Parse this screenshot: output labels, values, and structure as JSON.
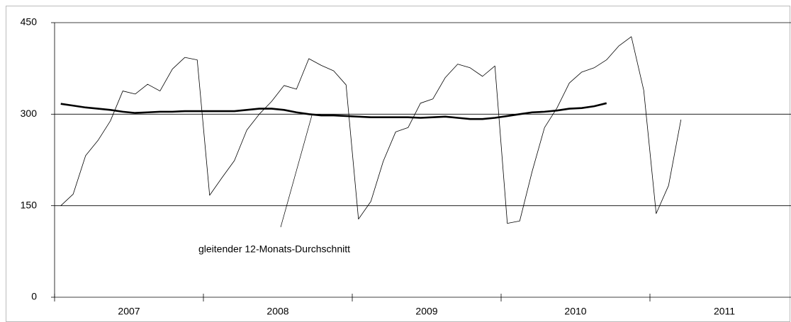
{
  "chart_data": {
    "type": "line",
    "categories": [
      null,
      null,
      null,
      null,
      null,
      null,
      null,
      null,
      null,
      null,
      null,
      null,
      null,
      null,
      null,
      null,
      null,
      null,
      null,
      null,
      null,
      null,
      null,
      null,
      null,
      null,
      null,
      null,
      null,
      null,
      null,
      null,
      null,
      null,
      null,
      null,
      null,
      null,
      null,
      null,
      null,
      null,
      null,
      null,
      null,
      null,
      null,
      null,
      null,
      null,
      null
    ],
    "year_labels": [
      "2007",
      "2008",
      "2009",
      "2010",
      "2011"
    ],
    "series": [
      {
        "name": null,
        "color": "#000000",
        "values": [
          150,
          169,
          232,
          257,
          289,
          338,
          333,
          349,
          338,
          374,
          393,
          389,
          167,
          196,
          224,
          274,
          300,
          321,
          347,
          341,
          391,
          380,
          371,
          348,
          128,
          157,
          223,
          271,
          278,
          318,
          325,
          360,
          382,
          376,
          362,
          379,
          121,
          125,
          206,
          278,
          310,
          351,
          369,
          376,
          389,
          412,
          427,
          339,
          137,
          183,
          291
        ]
      },
      {
        "name": "gleitender 12-Monats-Durchschnitt",
        "color": "#000000",
        "values": [
          317,
          314,
          311,
          309,
          307,
          304,
          302,
          303,
          304,
          304,
          305,
          305,
          305,
          305,
          305,
          307,
          309,
          309,
          307,
          303,
          300,
          298,
          298,
          297,
          296,
          295,
          295,
          295,
          295,
          294,
          295,
          296,
          294,
          292,
          292,
          294,
          297,
          300,
          303,
          304,
          306,
          309,
          310,
          313,
          318,
          null,
          null,
          null,
          null,
          null,
          null
        ]
      }
    ],
    "ylim": [
      0,
      450
    ],
    "yticks": [
      0,
      150,
      300,
      450
    ],
    "grid": true
  }
}
